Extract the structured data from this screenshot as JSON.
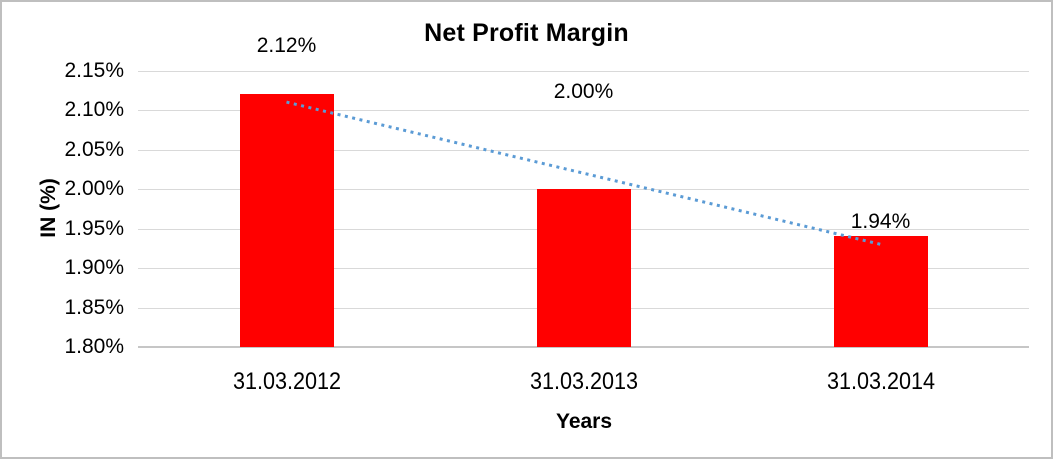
{
  "chart_data": {
    "type": "bar",
    "title": "Net Profit Margin",
    "xlabel": "Years",
    "ylabel": "IN (%)",
    "categories": [
      "31.03.2012",
      "31.03.2013",
      "31.03.2014"
    ],
    "values": [
      2.12,
      2.0,
      1.94
    ],
    "data_labels": [
      "2.12%",
      "2.00%",
      "1.94%"
    ],
    "yticks": [
      "1.80%",
      "1.85%",
      "1.90%",
      "1.95%",
      "2.00%",
      "2.05%",
      "2.10%",
      "2.15%"
    ],
    "ytick_values": [
      1.8,
      1.85,
      1.9,
      1.95,
      2.0,
      2.05,
      2.1,
      2.15
    ],
    "ylim": [
      1.8,
      2.15
    ],
    "grid": "horizontal",
    "legend": "none",
    "trendline": {
      "type": "linear",
      "style": "dotted"
    },
    "colors": {
      "bar": "#ff0000",
      "trendline": "#5b9bd5",
      "gridline": "#d9d9d9",
      "axis_line": "#c6c6c6",
      "text": "#000000",
      "border": "#bfbfbf",
      "background": "#ffffff"
    }
  }
}
